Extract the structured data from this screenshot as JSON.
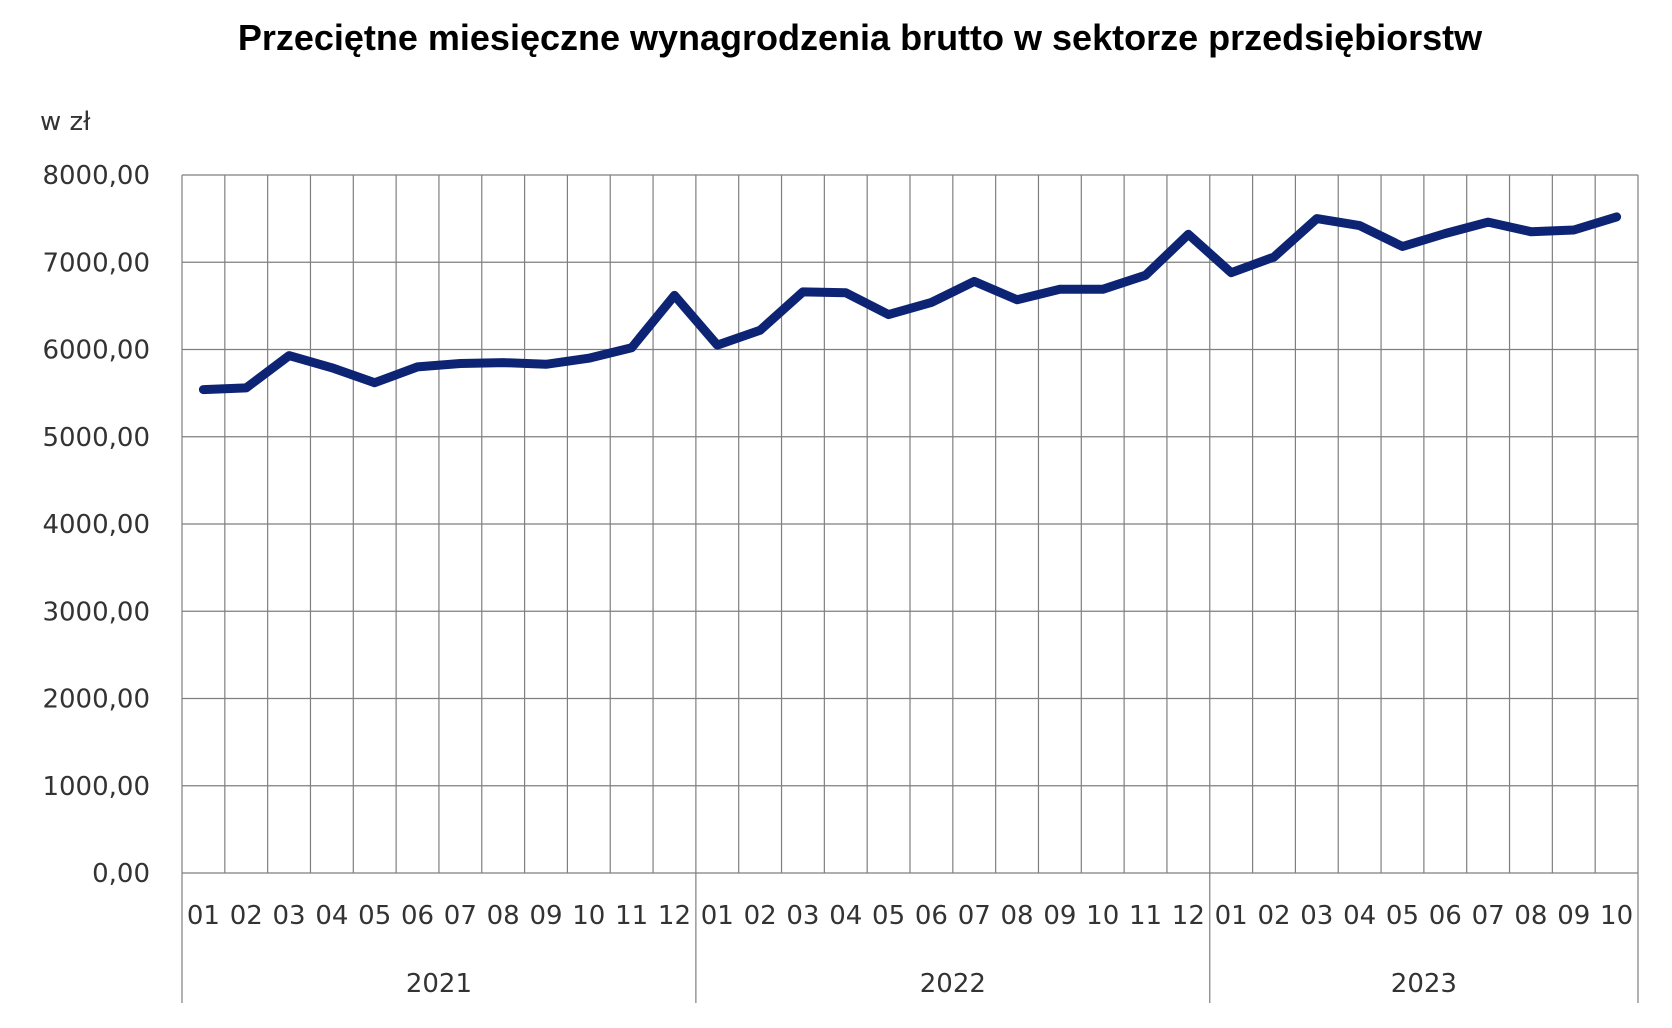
{
  "chart_data": {
    "type": "line",
    "title": "Przeciętne miesięczne wynagrodzenia brutto w sektorze przedsiębiorstw",
    "ylabel": "w zł",
    "xlabel": "",
    "ylim": [
      0,
      8000
    ],
    "y_ticks": [
      "0,00",
      "1000,00",
      "2000,00",
      "3000,00",
      "4000,00",
      "5000,00",
      "6000,00",
      "7000,00",
      "8000,00"
    ],
    "grid": true,
    "legend": "none",
    "line_color": "#0d2475",
    "categories": [
      "01",
      "02",
      "03",
      "04",
      "05",
      "06",
      "07",
      "08",
      "09",
      "10",
      "11",
      "12",
      "01",
      "02",
      "03",
      "04",
      "05",
      "06",
      "07",
      "08",
      "09",
      "10",
      "11",
      "12",
      "01",
      "02",
      "03",
      "04",
      "05",
      "06",
      "07",
      "08",
      "09",
      "10"
    ],
    "years": [
      {
        "label": "2021",
        "months": 12
      },
      {
        "label": "2022",
        "months": 12
      },
      {
        "label": "2023",
        "months": 10
      }
    ],
    "series": [
      {
        "values": [
          5540,
          5560,
          5930,
          5790,
          5620,
          5800,
          5840,
          5850,
          5830,
          5900,
          6020,
          6620,
          6050,
          6220,
          6660,
          6650,
          6400,
          6540,
          6780,
          6570,
          6690,
          6690,
          6850,
          7320,
          6880,
          7060,
          7500,
          7420,
          7180,
          7330,
          7460,
          7350,
          7370,
          7520
        ]
      }
    ]
  }
}
